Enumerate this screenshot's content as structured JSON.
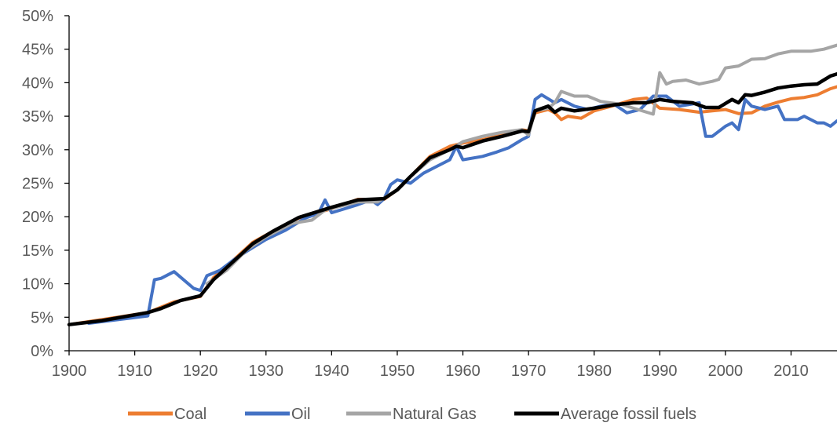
{
  "chart_data": {
    "type": "line",
    "title": "",
    "xlabel": "",
    "ylabel": "",
    "xlim": [
      1900,
      2017
    ],
    "ylim": [
      0,
      50
    ],
    "x_ticks": [
      1900,
      1910,
      1920,
      1930,
      1940,
      1950,
      1960,
      1970,
      1980,
      1990,
      2000,
      2010
    ],
    "x_tick_labels": [
      "1900",
      "1910",
      "1920",
      "1930",
      "1940",
      "1950",
      "1960",
      "1970",
      "1980",
      "1990",
      "2000",
      "2010"
    ],
    "y_ticks": [
      0,
      5,
      10,
      15,
      20,
      25,
      30,
      35,
      40,
      45,
      50
    ],
    "y_tick_labels": [
      "0%",
      "5%",
      "10%",
      "15%",
      "20%",
      "25%",
      "30%",
      "35%",
      "40%",
      "45%",
      "50%"
    ],
    "grid": false,
    "legend_position": "bottom",
    "series": [
      {
        "name": "Coal",
        "color": "#ED7D31",
        "points": [
          [
            1900,
            3.9
          ],
          [
            1912,
            5.7
          ],
          [
            1916,
            7.3
          ],
          [
            1920,
            8.1
          ],
          [
            1922,
            10.9
          ],
          [
            1925,
            13.5
          ],
          [
            1928,
            16.2
          ],
          [
            1931,
            17.8
          ],
          [
            1935,
            19.8
          ],
          [
            1940,
            21.2
          ],
          [
            1944,
            22.6
          ],
          [
            1948,
            22.6
          ],
          [
            1950,
            24.0
          ],
          [
            1952,
            26.0
          ],
          [
            1955,
            29.0
          ],
          [
            1958,
            30.5
          ],
          [
            1960,
            31.0
          ],
          [
            1963,
            31.5
          ],
          [
            1966,
            32.2
          ],
          [
            1969,
            33.0
          ],
          [
            1970,
            32.8
          ],
          [
            1971,
            35.5
          ],
          [
            1973,
            36.0
          ],
          [
            1974,
            35.5
          ],
          [
            1975,
            34.5
          ],
          [
            1976,
            35.0
          ],
          [
            1978,
            34.7
          ],
          [
            1980,
            35.8
          ],
          [
            1983,
            36.6
          ],
          [
            1986,
            37.5
          ],
          [
            1988,
            37.7
          ],
          [
            1990,
            36.2
          ],
          [
            1993,
            36.0
          ],
          [
            1996,
            35.6
          ],
          [
            1998,
            35.8
          ],
          [
            2000,
            36.0
          ],
          [
            2002,
            35.4
          ],
          [
            2004,
            35.5
          ],
          [
            2006,
            36.5
          ],
          [
            2008,
            37.1
          ],
          [
            2010,
            37.6
          ],
          [
            2012,
            37.8
          ],
          [
            2014,
            38.2
          ],
          [
            2016,
            39.1
          ],
          [
            2017,
            39.4
          ]
        ]
      },
      {
        "name": "Oil",
        "color": "#4472C4",
        "points": [
          [
            1903,
            4.1
          ],
          [
            1912,
            5.2
          ],
          [
            1913,
            10.6
          ],
          [
            1914,
            10.8
          ],
          [
            1916,
            11.8
          ],
          [
            1919,
            9.3
          ],
          [
            1920,
            9.0
          ],
          [
            1921,
            11.2
          ],
          [
            1923,
            12.0
          ],
          [
            1925,
            13.5
          ],
          [
            1927,
            14.8
          ],
          [
            1930,
            16.6
          ],
          [
            1933,
            18.0
          ],
          [
            1936,
            19.8
          ],
          [
            1938,
            20.5
          ],
          [
            1939,
            22.5
          ],
          [
            1940,
            20.6
          ],
          [
            1942,
            21.2
          ],
          [
            1944,
            21.8
          ],
          [
            1946,
            22.5
          ],
          [
            1947,
            21.8
          ],
          [
            1948,
            22.7
          ],
          [
            1949,
            24.8
          ],
          [
            1950,
            25.5
          ],
          [
            1952,
            25.0
          ],
          [
            1954,
            26.5
          ],
          [
            1956,
            27.5
          ],
          [
            1958,
            28.5
          ],
          [
            1959,
            30.5
          ],
          [
            1960,
            28.5
          ],
          [
            1963,
            29.0
          ],
          [
            1965,
            29.6
          ],
          [
            1967,
            30.3
          ],
          [
            1969,
            31.5
          ],
          [
            1970,
            32.0
          ],
          [
            1971,
            37.5
          ],
          [
            1972,
            38.2
          ],
          [
            1974,
            37.0
          ],
          [
            1975,
            37.5
          ],
          [
            1977,
            36.5
          ],
          [
            1979,
            36.0
          ],
          [
            1981,
            36.5
          ],
          [
            1983,
            36.8
          ],
          [
            1985,
            35.5
          ],
          [
            1987,
            36.0
          ],
          [
            1989,
            38.0
          ],
          [
            1991,
            38.0
          ],
          [
            1993,
            36.5
          ],
          [
            1996,
            37.0
          ],
          [
            1997,
            32.0
          ],
          [
            1998,
            32.0
          ],
          [
            2000,
            33.5
          ],
          [
            2001,
            34.0
          ],
          [
            2002,
            33.0
          ],
          [
            2003,
            37.5
          ],
          [
            2004,
            36.5
          ],
          [
            2006,
            36.0
          ],
          [
            2008,
            36.5
          ],
          [
            2009,
            34.5
          ],
          [
            2011,
            34.5
          ],
          [
            2012,
            35.0
          ],
          [
            2014,
            34.0
          ],
          [
            2015,
            34.0
          ],
          [
            2016,
            33.5
          ],
          [
            2017,
            34.3
          ]
        ]
      },
      {
        "name": "Natural Gas",
        "color": "#A5A5A5",
        "points": [
          [
            1921,
            10.0
          ],
          [
            1924,
            12.0
          ],
          [
            1927,
            15.0
          ],
          [
            1930,
            17.0
          ],
          [
            1934,
            19.0
          ],
          [
            1937,
            19.5
          ],
          [
            1939,
            21.0
          ],
          [
            1941,
            21.5
          ],
          [
            1944,
            22.2
          ],
          [
            1947,
            22.2
          ],
          [
            1950,
            24.0
          ],
          [
            1952,
            26.0
          ],
          [
            1955,
            28.5
          ],
          [
            1958,
            30.0
          ],
          [
            1960,
            31.2
          ],
          [
            1963,
            32.0
          ],
          [
            1966,
            32.6
          ],
          [
            1969,
            33.0
          ],
          [
            1970,
            32.2
          ],
          [
            1971,
            35.8
          ],
          [
            1973,
            36.2
          ],
          [
            1974,
            37.0
          ],
          [
            1975,
            38.7
          ],
          [
            1977,
            38.0
          ],
          [
            1979,
            38.0
          ],
          [
            1981,
            37.2
          ],
          [
            1984,
            36.8
          ],
          [
            1986,
            36.2
          ],
          [
            1989,
            35.3
          ],
          [
            1990,
            41.5
          ],
          [
            1991,
            39.8
          ],
          [
            1992,
            40.2
          ],
          [
            1994,
            40.4
          ],
          [
            1996,
            39.8
          ],
          [
            1998,
            40.2
          ],
          [
            1999,
            40.5
          ],
          [
            2000,
            42.2
          ],
          [
            2002,
            42.5
          ],
          [
            2004,
            43.5
          ],
          [
            2006,
            43.6
          ],
          [
            2008,
            44.3
          ],
          [
            2010,
            44.7
          ],
          [
            2013,
            44.7
          ],
          [
            2015,
            45.0
          ],
          [
            2017,
            45.6
          ]
        ]
      },
      {
        "name": "Average fossil fuels",
        "color": "#000000",
        "points": [
          [
            1900,
            3.9
          ],
          [
            1905,
            4.5
          ],
          [
            1912,
            5.7
          ],
          [
            1914,
            6.3
          ],
          [
            1917,
            7.5
          ],
          [
            1920,
            8.2
          ],
          [
            1922,
            10.6
          ],
          [
            1925,
            13.3
          ],
          [
            1928,
            16.0
          ],
          [
            1931,
            17.8
          ],
          [
            1935,
            19.9
          ],
          [
            1940,
            21.4
          ],
          [
            1944,
            22.5
          ],
          [
            1948,
            22.7
          ],
          [
            1950,
            24.0
          ],
          [
            1952,
            26.0
          ],
          [
            1955,
            28.8
          ],
          [
            1958,
            30.0
          ],
          [
            1959,
            30.5
          ],
          [
            1960,
            30.3
          ],
          [
            1963,
            31.3
          ],
          [
            1966,
            32.0
          ],
          [
            1969,
            32.8
          ],
          [
            1970,
            32.7
          ],
          [
            1971,
            35.8
          ],
          [
            1973,
            36.5
          ],
          [
            1974,
            35.6
          ],
          [
            1975,
            36.2
          ],
          [
            1977,
            35.8
          ],
          [
            1980,
            36.2
          ],
          [
            1983,
            36.7
          ],
          [
            1986,
            37.0
          ],
          [
            1988,
            37.0
          ],
          [
            1990,
            37.5
          ],
          [
            1992,
            37.2
          ],
          [
            1995,
            37.0
          ],
          [
            1997,
            36.3
          ],
          [
            1999,
            36.3
          ],
          [
            2001,
            37.5
          ],
          [
            2002,
            37.0
          ],
          [
            2003,
            38.2
          ],
          [
            2004,
            38.1
          ],
          [
            2006,
            38.6
          ],
          [
            2008,
            39.2
          ],
          [
            2010,
            39.5
          ],
          [
            2012,
            39.7
          ],
          [
            2014,
            39.8
          ],
          [
            2016,
            41.0
          ],
          [
            2017,
            41.3
          ]
        ]
      }
    ]
  }
}
